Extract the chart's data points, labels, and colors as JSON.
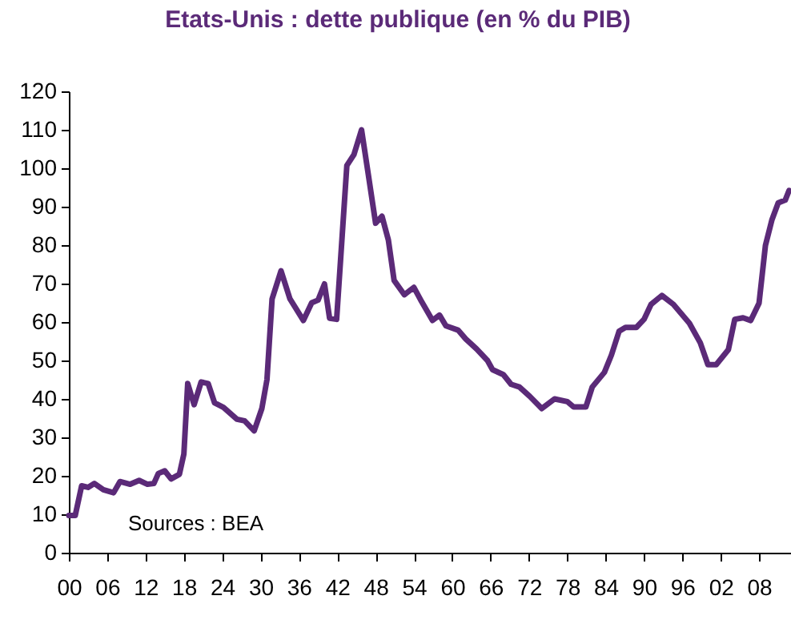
{
  "chart_data": {
    "type": "line",
    "title": "Etats-Unis : dette publique (en % du PIB)",
    "annotations": [
      "Sources : BEA"
    ],
    "series": [
      {
        "color": "#5b2a78",
        "x": [
          1900,
          1901,
          1902,
          1903,
          1904,
          1905.4,
          1907,
          1908,
          1909.6,
          1911,
          1912.3,
          1913.3,
          1914,
          1915,
          1916,
          1917.3,
          1918,
          1918.6,
          1919.6,
          1920.7,
          1921.8,
          1922.8,
          1924.2,
          1926.3,
          1927.5,
          1929,
          1930.2,
          1931,
          1931.8,
          1933.2,
          1934.6,
          1935.4,
          1936.7,
          1938,
          1939,
          1940,
          1940.8,
          1941.9,
          1943.5,
          1944.6,
          1945.8,
          1946.8,
          1948,
          1949,
          1950,
          1950.9,
          1952.5,
          1954,
          1955.2,
          1956.9,
          1958,
          1959,
          1960.9,
          1962.1,
          1963.8,
          1965.5,
          1966.3,
          1968,
          1969.2,
          1970.5,
          1972.1,
          1974,
          1976,
          1978,
          1979,
          1980.9,
          1981.9,
          1983.8,
          1984.9,
          1986.1,
          1987.1,
          1988.8,
          1990,
          1991.1,
          1992.8,
          1994.6,
          1997.1,
          1998.8,
          2000,
          2001.3,
          2003.2,
          2004.2,
          2005.5,
          2006.7,
          2008,
          2009,
          2010,
          2011,
          2012.1,
          2012.7
        ],
        "values": [
          9.7,
          9.7,
          17.4,
          17,
          18,
          16.4,
          15.6,
          18.5,
          17.8,
          18.8,
          17.8,
          18,
          20.6,
          21.3,
          19.2,
          20.4,
          25.7,
          44,
          38.5,
          44.4,
          44,
          39,
          37.8,
          34.7,
          34.3,
          31.7,
          37.5,
          45,
          66,
          73.3,
          66,
          63.9,
          60.4,
          65,
          65.7,
          69.9,
          61,
          60.7,
          100.7,
          103.5,
          110,
          99,
          85.7,
          87.5,
          81.3,
          70.8,
          67.1,
          69,
          65.3,
          60.4,
          61.8,
          59,
          57.9,
          55.6,
          53,
          50,
          47.6,
          46.3,
          43.8,
          43.1,
          40.7,
          37.5,
          40,
          39.3,
          37.9,
          37.9,
          43.1,
          46.9,
          51.4,
          57.6,
          58.6,
          58.6,
          60.7,
          64.6,
          66.9,
          64.6,
          59.7,
          54.6,
          48.9,
          48.9,
          52.8,
          60.7,
          61.1,
          60.4,
          64.9,
          79.9,
          86.5,
          91,
          91.7,
          94.2
        ]
      }
    ],
    "xlim": [
      1900,
      2013
    ],
    "xticks": [
      {
        "value": 1900,
        "label": "00"
      },
      {
        "value": 1906,
        "label": "06"
      },
      {
        "value": 1912,
        "label": "12"
      },
      {
        "value": 1918,
        "label": "18"
      },
      {
        "value": 1924,
        "label": "24"
      },
      {
        "value": 1930,
        "label": "30"
      },
      {
        "value": 1936,
        "label": "36"
      },
      {
        "value": 1942,
        "label": "42"
      },
      {
        "value": 1948,
        "label": "48"
      },
      {
        "value": 1954,
        "label": "54"
      },
      {
        "value": 1960,
        "label": "60"
      },
      {
        "value": 1966,
        "label": "66"
      },
      {
        "value": 1972,
        "label": "72"
      },
      {
        "value": 1978,
        "label": "78"
      },
      {
        "value": 1984,
        "label": "84"
      },
      {
        "value": 1990,
        "label": "90"
      },
      {
        "value": 1996,
        "label": "96"
      },
      {
        "value": 2002,
        "label": "02"
      },
      {
        "value": 2008,
        "label": "08"
      }
    ],
    "ylim": [
      0,
      120
    ],
    "yticks": [
      0,
      10,
      20,
      30,
      40,
      50,
      60,
      70,
      80,
      90,
      100,
      110,
      120
    ],
    "grid": false
  }
}
